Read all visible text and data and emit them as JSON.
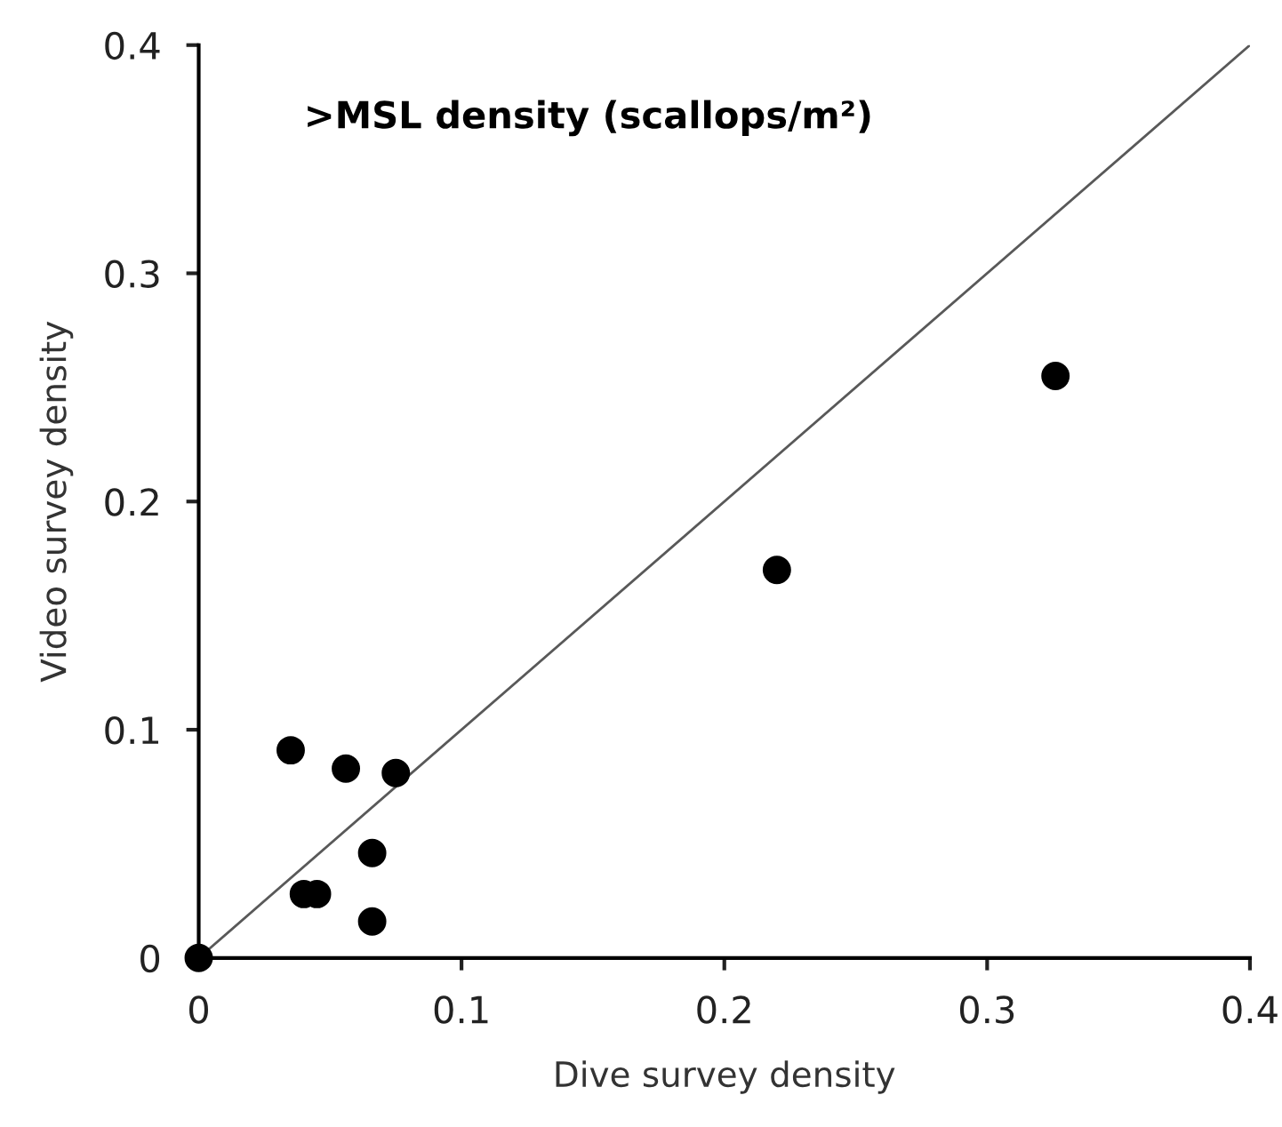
{
  "chart_data": {
    "type": "scatter",
    "title": ">MSL density (scallops/m²)",
    "xlabel": "Dive survey density",
    "ylabel": "Video survey density",
    "xlim": [
      0,
      0.4
    ],
    "ylim": [
      0,
      0.4
    ],
    "xticks": [
      0,
      0.1,
      0.2,
      0.3,
      0.4
    ],
    "yticks": [
      0,
      0.1,
      0.2,
      0.3,
      0.4
    ],
    "grid": false,
    "marker": "circle",
    "series": [
      {
        "color": "#000000",
        "x": [
          0,
          0.035,
          0.056,
          0.075,
          0.066,
          0.04,
          0.045,
          0.066,
          0.22,
          0.326
        ],
        "values": [
          0,
          0.091,
          0.083,
          0.081,
          0.046,
          0.028,
          0.028,
          0.016,
          0.17,
          0.255
        ]
      },
      {
        "type": "line",
        "color": "#595959",
        "line_style": "solid",
        "marker": "none",
        "x": [
          0,
          0.4
        ],
        "values": [
          0,
          0.4
        ]
      }
    ]
  }
}
